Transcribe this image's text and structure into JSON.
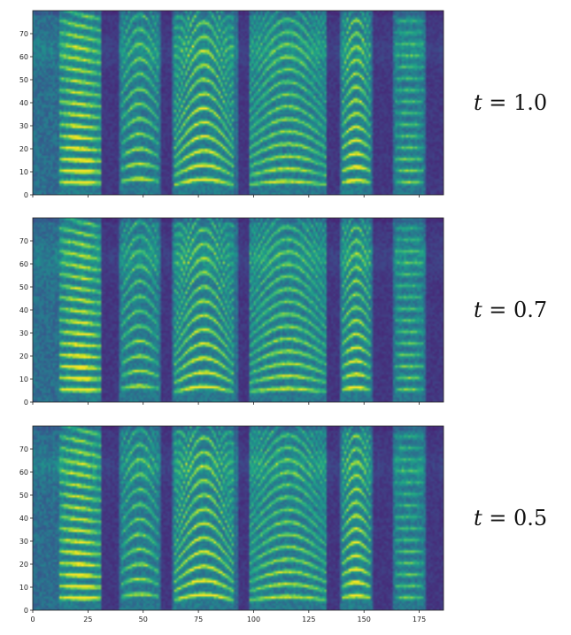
{
  "chart_data": [
    {
      "type": "heatmap",
      "label": "t = 1.0",
      "label_var": "t",
      "label_value": "1.0",
      "xlim": [
        0,
        186
      ],
      "ylim": [
        0,
        80
      ],
      "xticks": [
        0,
        25,
        50,
        75,
        100,
        125,
        150,
        175
      ],
      "yticks": [
        0,
        10,
        20,
        30,
        40,
        50,
        60,
        70
      ],
      "xtick_labels_shown": false,
      "colormap": "viridis",
      "segments": [
        {
          "start": 12,
          "end": 30,
          "f0": 5,
          "slope": -0.15,
          "curve": 0.0,
          "strength": 1.0
        },
        {
          "start": 40,
          "end": 56,
          "f0": 5.5,
          "slope": 0.0,
          "curve": 0.25,
          "strength": 0.7
        },
        {
          "start": 64,
          "end": 90,
          "f0": 4,
          "slope": 0.0,
          "curve": 0.55,
          "strength": 0.85
        },
        {
          "start": 98,
          "end": 132,
          "f0": 4,
          "slope": 0.0,
          "curve": 0.35,
          "strength": 0.7
        },
        {
          "start": 140,
          "end": 152,
          "f0": 5,
          "slope": 0.0,
          "curve": 0.2,
          "strength": 0.9
        },
        {
          "start": 164,
          "end": 176,
          "f0": 5,
          "slope": 0.0,
          "curve": 0.0,
          "strength": 0.55
        }
      ],
      "dark_gaps": [
        [
          31,
          38
        ],
        [
          58,
          62
        ],
        [
          93,
          97
        ],
        [
          133,
          138
        ],
        [
          154,
          162
        ],
        [
          178,
          186
        ]
      ]
    },
    {
      "type": "heatmap",
      "label": "t = 0.7",
      "label_var": "t",
      "label_value": "0.7",
      "xlim": [
        0,
        186
      ],
      "ylim": [
        0,
        80
      ],
      "xticks": [
        0,
        25,
        50,
        75,
        100,
        125,
        150,
        175
      ],
      "yticks": [
        0,
        10,
        20,
        30,
        40,
        50,
        60,
        70
      ],
      "xtick_labels_shown": false,
      "colormap": "viridis",
      "segments": [
        {
          "start": 12,
          "end": 30,
          "f0": 5,
          "slope": -0.15,
          "curve": 0.0,
          "strength": 1.0
        },
        {
          "start": 40,
          "end": 56,
          "f0": 5.5,
          "slope": 0.0,
          "curve": 0.25,
          "strength": 0.65
        },
        {
          "start": 64,
          "end": 90,
          "f0": 4,
          "slope": 0.0,
          "curve": 0.55,
          "strength": 0.8
        },
        {
          "start": 98,
          "end": 132,
          "f0": 4,
          "slope": 0.0,
          "curve": 0.35,
          "strength": 0.7
        },
        {
          "start": 140,
          "end": 152,
          "f0": 5,
          "slope": 0.0,
          "curve": 0.2,
          "strength": 0.85
        },
        {
          "start": 164,
          "end": 176,
          "f0": 5,
          "slope": 0.0,
          "curve": 0.0,
          "strength": 0.55
        }
      ],
      "dark_gaps": [
        [
          31,
          38
        ],
        [
          58,
          62
        ],
        [
          93,
          97
        ],
        [
          133,
          138
        ],
        [
          154,
          162
        ],
        [
          178,
          186
        ]
      ]
    },
    {
      "type": "heatmap",
      "label": "t = 0.5",
      "label_var": "t",
      "label_value": "0.5",
      "xlim": [
        0,
        186
      ],
      "ylim": [
        0,
        80
      ],
      "xticks": [
        0,
        25,
        50,
        75,
        100,
        125,
        150,
        175
      ],
      "yticks": [
        0,
        10,
        20,
        30,
        40,
        50,
        60,
        70
      ],
      "xtick_labels_shown": true,
      "colormap": "viridis",
      "segments": [
        {
          "start": 12,
          "end": 30,
          "f0": 5,
          "slope": -0.15,
          "curve": 0.0,
          "strength": 1.0
        },
        {
          "start": 40,
          "end": 56,
          "f0": 5.5,
          "slope": 0.0,
          "curve": 0.25,
          "strength": 0.65
        },
        {
          "start": 64,
          "end": 90,
          "f0": 4,
          "slope": 0.0,
          "curve": 0.55,
          "strength": 0.85
        },
        {
          "start": 98,
          "end": 132,
          "f0": 4,
          "slope": 0.0,
          "curve": 0.35,
          "strength": 0.7
        },
        {
          "start": 140,
          "end": 152,
          "f0": 5,
          "slope": 0.0,
          "curve": 0.2,
          "strength": 0.9
        },
        {
          "start": 164,
          "end": 176,
          "f0": 5,
          "slope": 0.0,
          "curve": 0.0,
          "strength": 0.5
        }
      ],
      "dark_gaps": [
        [
          31,
          38
        ],
        [
          58,
          62
        ],
        [
          93,
          97
        ],
        [
          133,
          138
        ],
        [
          154,
          162
        ],
        [
          178,
          186
        ]
      ]
    }
  ]
}
